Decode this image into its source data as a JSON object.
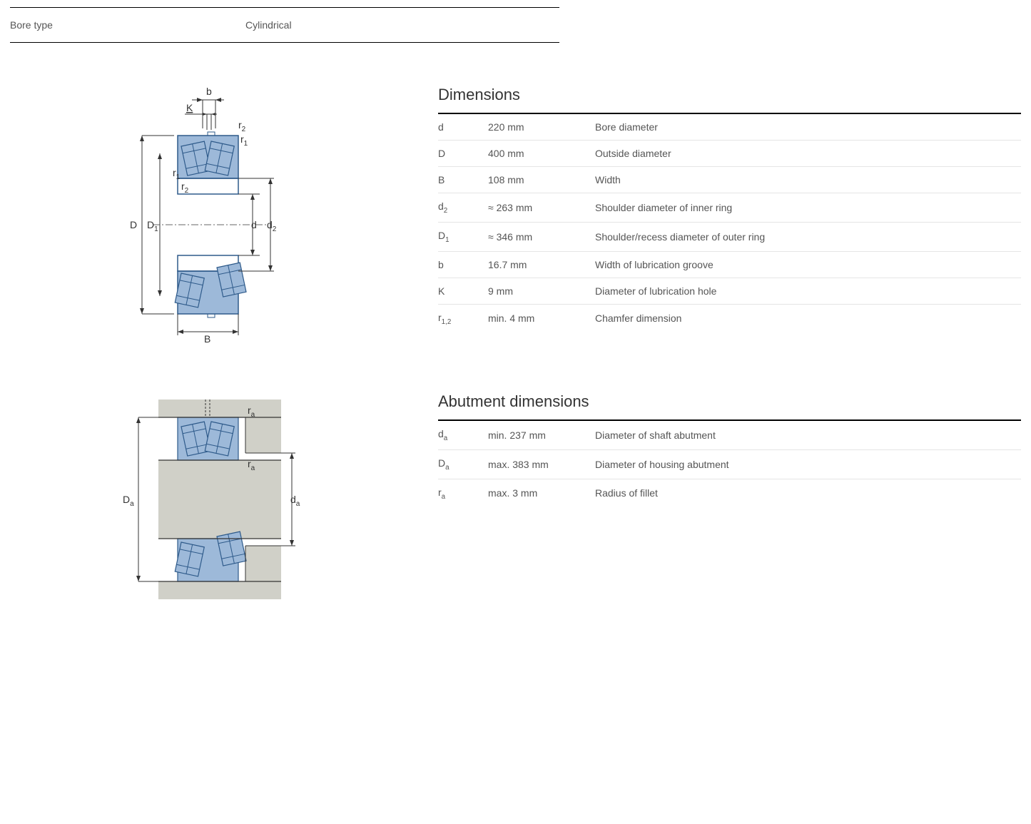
{
  "header": {
    "label": "Bore type",
    "value": "Cylindrical"
  },
  "diagram1": {
    "labels": {
      "D": "D",
      "D1": "D",
      "D1sub": "1",
      "d": "d",
      "d2": "d",
      "d2sub": "2",
      "B": "B",
      "b": "b",
      "K": "K",
      "r1": "r",
      "r1sub": "1",
      "r2": "r",
      "r2sub": "2"
    },
    "colors": {
      "fill": "#9db9d9",
      "stroke": "#2e5a8a"
    }
  },
  "diagram2": {
    "labels": {
      "Da": "D",
      "Dasub": "a",
      "da_": "d",
      "dasub": "a",
      "ra": "r",
      "rasub": "a"
    },
    "colors": {
      "solid": "#d0d0c8",
      "stroke": "#2e5a8a",
      "fill": "#9db9d9"
    }
  },
  "dimensions": {
    "title": "Dimensions",
    "rows": [
      {
        "sym": "d",
        "val": "220 mm",
        "desc": "Bore diameter"
      },
      {
        "sym": "D",
        "val": "400 mm",
        "desc": "Outside diameter"
      },
      {
        "sym": "B",
        "val": "108 mm",
        "desc": "Width"
      },
      {
        "sym": "d<sub>2</sub>",
        "val": "≈ 263 mm",
        "desc": "Shoulder diameter of inner ring"
      },
      {
        "sym": "D<sub>1</sub>",
        "val": "≈ 346 mm",
        "desc": "Shoulder/recess diameter of outer ring"
      },
      {
        "sym": "b",
        "val": "16.7 mm",
        "desc": "Width of lubrication groove"
      },
      {
        "sym": "K",
        "val": "9 mm",
        "desc": "Diameter of lubrication hole"
      },
      {
        "sym": "r<sub>1,2</sub>",
        "val": "min. 4 mm",
        "desc": "Chamfer dimension"
      }
    ]
  },
  "abutment": {
    "title": "Abutment dimensions",
    "rows": [
      {
        "sym": "d<sub>a</sub>",
        "val": "min. 237 mm",
        "desc": "Diameter of shaft abutment"
      },
      {
        "sym": "D<sub>a</sub>",
        "val": "max. 383 mm",
        "desc": "Diameter of housing abutment"
      },
      {
        "sym": "r<sub>a</sub>",
        "val": "max. 3 mm",
        "desc": "Radius of fillet"
      }
    ]
  }
}
